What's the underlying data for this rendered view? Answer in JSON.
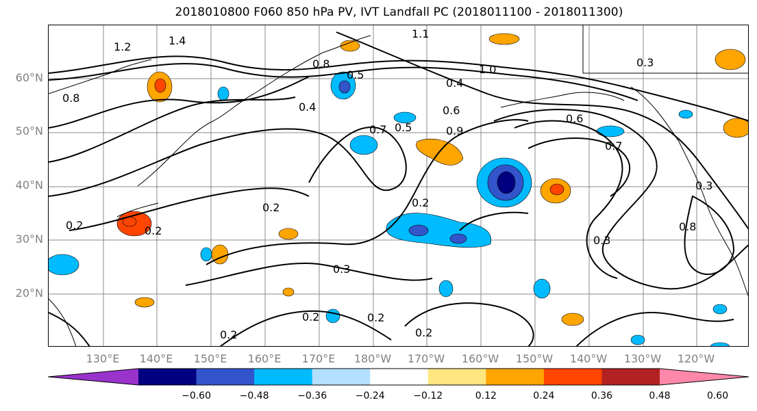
{
  "title": "2018010800 F060 850 hPa PV, IVT Landfall PC (2018011100 - 2018011300)",
  "lat_labels": [
    "60°N",
    "50°N",
    "40°N",
    "30°N",
    "20°N"
  ],
  "lon_labels": [
    "130°E",
    "140°E",
    "150°E",
    "160°E",
    "170°E",
    "180°W",
    "170°W",
    "160°W",
    "150°W",
    "140°W",
    "130°W",
    "120°W"
  ],
  "contour_labels": [
    "1.2",
    "1.4",
    "0.8",
    "0.5",
    "0.4",
    "0.7",
    "0.6",
    "0.9",
    "1.0",
    "1.1",
    "0.2",
    "0.3",
    "0.8",
    "0.2",
    "0.3",
    "0.2",
    "0.2",
    "0.2",
    "0.7",
    "0.5",
    "0.6",
    "0.3",
    "0.4",
    "0.3",
    "0.2",
    "0.8",
    "0.2",
    "0.2"
  ],
  "colorbar": {
    "ticks": [
      "−0.60",
      "−0.48",
      "−0.36",
      "−0.24",
      "−0.12",
      "0.12",
      "0.24",
      "0.36",
      "0.48",
      "0.60"
    ],
    "colors": [
      "#9933cc",
      "#000080",
      "#3355cc",
      "#00bbff",
      "#b3e0ff",
      "#ffffff",
      "#ffe680",
      "#ffa500",
      "#ff4500",
      "#b22222",
      "#ff88aa"
    ]
  }
}
